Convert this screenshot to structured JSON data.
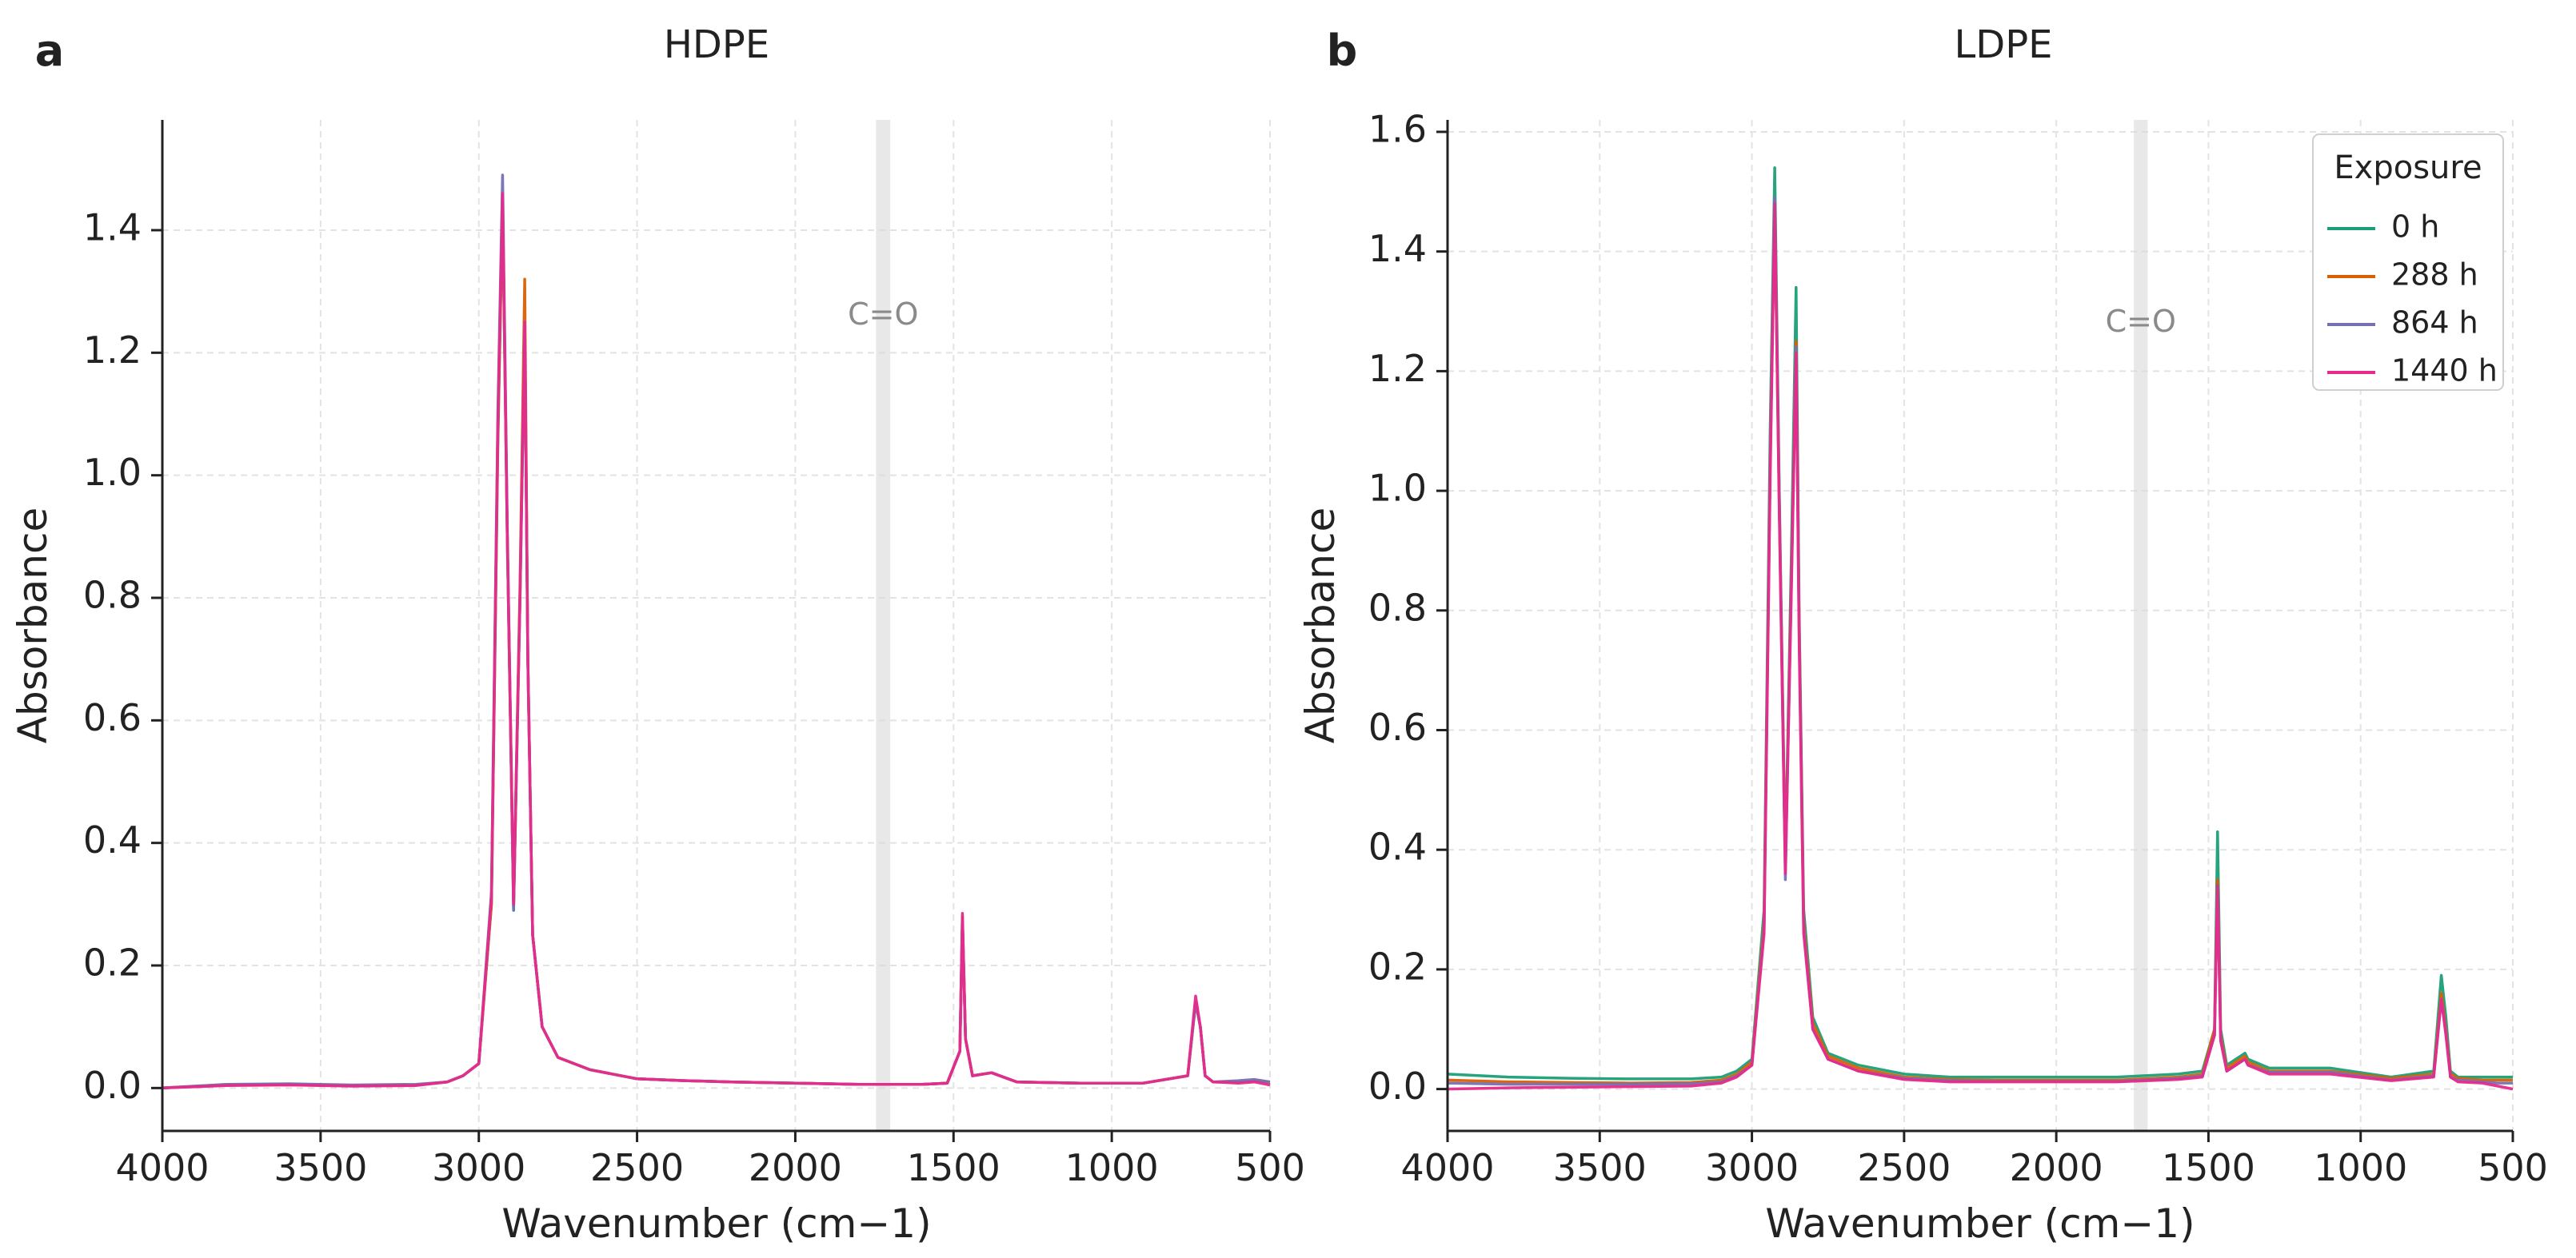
{
  "chart_data": [
    {
      "panel": "a",
      "type": "line",
      "title": "HDPE",
      "xlabel": "Wavenumber (cm−1)",
      "ylabel": "Absorbance",
      "xlim": [
        4000,
        500
      ],
      "ylim": [
        -0.07,
        1.58
      ],
      "xticks": [
        4000,
        3500,
        3000,
        2500,
        2000,
        1500,
        1000,
        500
      ],
      "yticks": [
        0.0,
        0.2,
        0.4,
        0.6,
        0.8,
        1.0,
        1.2,
        1.4
      ],
      "ytick_labels": [
        "0.0",
        "0.2",
        "0.4",
        "0.6",
        "0.8",
        "1.0",
        "1.2",
        "1.4"
      ],
      "grid": true,
      "legend": null,
      "annotation": {
        "text": "C=O",
        "band_x": [
          1745,
          1700
        ],
        "y": 1.26
      },
      "series": [
        {
          "name": "0 h",
          "color": "#1b9e77",
          "x": [
            4000,
            3800,
            3600,
            3400,
            3200,
            3100,
            3050,
            3000,
            2960,
            2940,
            2925,
            2910,
            2890,
            2870,
            2855,
            2845,
            2830,
            2800,
            2750,
            2650,
            2500,
            2350,
            2200,
            2000,
            1800,
            1600,
            1520,
            1480,
            1472,
            1462,
            1440,
            1380,
            1300,
            1100,
            900,
            760,
            735,
            720,
            705,
            680,
            600,
            550,
            500
          ],
          "y": [
            0.0,
            0.005,
            0.006,
            0.004,
            0.005,
            0.01,
            0.02,
            0.04,
            0.3,
            1.05,
            1.44,
            0.9,
            0.29,
            0.8,
            1.24,
            0.7,
            0.25,
            0.1,
            0.05,
            0.03,
            0.015,
            0.012,
            0.01,
            0.008,
            0.006,
            0.006,
            0.008,
            0.06,
            0.28,
            0.08,
            0.02,
            0.025,
            0.01,
            0.008,
            0.008,
            0.02,
            0.14,
            0.1,
            0.02,
            0.01,
            0.01,
            0.012,
            0.01
          ]
        },
        {
          "name": "288 h",
          "color": "#d95f02",
          "x": [
            4000,
            3800,
            3600,
            3400,
            3200,
            3100,
            3050,
            3000,
            2960,
            2940,
            2925,
            2910,
            2890,
            2870,
            2855,
            2845,
            2830,
            2800,
            2750,
            2650,
            2500,
            2350,
            2200,
            2000,
            1800,
            1600,
            1520,
            1480,
            1472,
            1462,
            1440,
            1380,
            1300,
            1100,
            900,
            760,
            735,
            720,
            705,
            680,
            600,
            550,
            500
          ],
          "y": [
            0.0,
            0.005,
            0.006,
            0.004,
            0.005,
            0.01,
            0.02,
            0.04,
            0.3,
            1.06,
            1.45,
            0.9,
            0.3,
            0.82,
            1.32,
            0.7,
            0.25,
            0.1,
            0.05,
            0.03,
            0.015,
            0.012,
            0.01,
            0.008,
            0.006,
            0.006,
            0.008,
            0.06,
            0.27,
            0.08,
            0.02,
            0.025,
            0.01,
            0.008,
            0.008,
            0.02,
            0.14,
            0.1,
            0.02,
            0.01,
            0.01,
            0.012,
            0.01
          ]
        },
        {
          "name": "864 h",
          "color": "#7570b3",
          "x": [
            4000,
            3800,
            3600,
            3400,
            3200,
            3100,
            3050,
            3000,
            2960,
            2940,
            2925,
            2910,
            2890,
            2870,
            2855,
            2845,
            2830,
            2800,
            2750,
            2650,
            2500,
            2350,
            2200,
            2000,
            1800,
            1600,
            1520,
            1480,
            1472,
            1462,
            1440,
            1380,
            1300,
            1100,
            900,
            760,
            735,
            720,
            705,
            680,
            600,
            550,
            500
          ],
          "y": [
            0.0,
            0.006,
            0.007,
            0.005,
            0.006,
            0.01,
            0.02,
            0.04,
            0.32,
            1.1,
            1.49,
            0.92,
            0.29,
            0.8,
            1.25,
            0.7,
            0.25,
            0.1,
            0.05,
            0.03,
            0.015,
            0.012,
            0.01,
            0.008,
            0.006,
            0.006,
            0.008,
            0.06,
            0.27,
            0.08,
            0.02,
            0.025,
            0.01,
            0.008,
            0.008,
            0.02,
            0.14,
            0.1,
            0.02,
            0.01,
            0.012,
            0.014,
            0.01
          ]
        },
        {
          "name": "1440 h",
          "color": "#e7298a",
          "x": [
            4000,
            3800,
            3600,
            3400,
            3200,
            3100,
            3050,
            3000,
            2960,
            2940,
            2925,
            2910,
            2890,
            2870,
            2855,
            2845,
            2830,
            2800,
            2750,
            2650,
            2500,
            2350,
            2200,
            2000,
            1800,
            1600,
            1520,
            1480,
            1472,
            1462,
            1440,
            1380,
            1300,
            1100,
            900,
            760,
            735,
            720,
            705,
            680,
            600,
            550,
            500
          ],
          "y": [
            0.0,
            0.004,
            0.005,
            0.003,
            0.004,
            0.01,
            0.02,
            0.04,
            0.31,
            1.08,
            1.46,
            0.9,
            0.3,
            0.8,
            1.25,
            0.7,
            0.25,
            0.1,
            0.05,
            0.03,
            0.015,
            0.012,
            0.01,
            0.008,
            0.006,
            0.006,
            0.008,
            0.06,
            0.285,
            0.08,
            0.02,
            0.025,
            0.01,
            0.008,
            0.008,
            0.02,
            0.15,
            0.1,
            0.02,
            0.01,
            0.008,
            0.01,
            0.005
          ]
        }
      ]
    },
    {
      "panel": "b",
      "type": "line",
      "title": "LDPE",
      "xlabel": "Wavenumber (cm−1)",
      "ylabel": "Absorbance",
      "xlim": [
        4000,
        500
      ],
      "ylim": [
        -0.07,
        1.62
      ],
      "xticks": [
        4000,
        3500,
        3000,
        2500,
        2000,
        1500,
        1000,
        500
      ],
      "yticks": [
        0.0,
        0.2,
        0.4,
        0.6,
        0.8,
        1.0,
        1.2,
        1.4,
        1.6
      ],
      "ytick_labels": [
        "0.0",
        "0.2",
        "0.4",
        "0.6",
        "0.8",
        "1.0",
        "1.2",
        "1.4",
        "1.6"
      ],
      "grid": true,
      "legend": {
        "title": "Exposure",
        "position": "top-right"
      },
      "annotation": {
        "text": "C=O",
        "band_x": [
          1745,
          1700
        ],
        "y": 1.28
      },
      "series": [
        {
          "name": "0 h",
          "color": "#1b9e77",
          "x": [
            4000,
            3800,
            3600,
            3400,
            3200,
            3100,
            3050,
            3000,
            2960,
            2940,
            2925,
            2910,
            2890,
            2870,
            2855,
            2845,
            2830,
            2800,
            2750,
            2650,
            2500,
            2350,
            2200,
            2000,
            1800,
            1600,
            1520,
            1480,
            1470,
            1460,
            1440,
            1380,
            1370,
            1300,
            1100,
            900,
            760,
            735,
            720,
            705,
            680,
            600,
            550,
            500
          ],
          "y": [
            0.025,
            0.02,
            0.018,
            0.017,
            0.017,
            0.02,
            0.03,
            0.05,
            0.3,
            1.1,
            1.54,
            1.0,
            0.38,
            0.9,
            1.34,
            0.8,
            0.3,
            0.12,
            0.06,
            0.04,
            0.025,
            0.02,
            0.02,
            0.02,
            0.02,
            0.025,
            0.03,
            0.1,
            0.43,
            0.1,
            0.04,
            0.06,
            0.05,
            0.035,
            0.035,
            0.02,
            0.03,
            0.19,
            0.12,
            0.03,
            0.02,
            0.02,
            0.02,
            0.02
          ]
        },
        {
          "name": "288 h",
          "color": "#d95f02",
          "x": [
            4000,
            3800,
            3600,
            3400,
            3200,
            3100,
            3050,
            3000,
            2960,
            2940,
            2925,
            2910,
            2890,
            2870,
            2855,
            2845,
            2830,
            2800,
            2750,
            2650,
            2500,
            2350,
            2200,
            2000,
            1800,
            1600,
            1520,
            1480,
            1470,
            1460,
            1440,
            1380,
            1370,
            1300,
            1100,
            900,
            760,
            735,
            720,
            705,
            680,
            600,
            550,
            500
          ],
          "y": [
            0.015,
            0.012,
            0.011,
            0.01,
            0.011,
            0.015,
            0.025,
            0.045,
            0.28,
            1.05,
            1.47,
            0.98,
            0.37,
            0.86,
            1.25,
            0.78,
            0.28,
            0.11,
            0.055,
            0.035,
            0.02,
            0.016,
            0.015,
            0.015,
            0.015,
            0.02,
            0.025,
            0.1,
            0.35,
            0.09,
            0.035,
            0.055,
            0.045,
            0.03,
            0.03,
            0.018,
            0.025,
            0.16,
            0.1,
            0.025,
            0.018,
            0.015,
            0.015,
            0.015
          ]
        },
        {
          "name": "864 h",
          "color": "#7570b3",
          "x": [
            4000,
            3800,
            3600,
            3400,
            3200,
            3100,
            3050,
            3000,
            2960,
            2940,
            2925,
            2910,
            2890,
            2870,
            2855,
            2845,
            2830,
            2800,
            2750,
            2650,
            2500,
            2350,
            2200,
            2000,
            1800,
            1600,
            1520,
            1480,
            1470,
            1460,
            1440,
            1380,
            1370,
            1300,
            1100,
            900,
            760,
            735,
            720,
            705,
            680,
            600,
            550,
            500
          ],
          "y": [
            0.01,
            0.008,
            0.008,
            0.008,
            0.009,
            0.012,
            0.022,
            0.04,
            0.27,
            1.04,
            1.49,
            0.98,
            0.35,
            0.85,
            1.24,
            0.77,
            0.27,
            0.1,
            0.05,
            0.03,
            0.018,
            0.014,
            0.013,
            0.013,
            0.013,
            0.018,
            0.022,
            0.09,
            0.34,
            0.085,
            0.03,
            0.05,
            0.04,
            0.028,
            0.028,
            0.015,
            0.022,
            0.15,
            0.095,
            0.02,
            0.015,
            0.012,
            0.01,
            0.01
          ]
        },
        {
          "name": "1440 h",
          "color": "#e7298a",
          "x": [
            4000,
            3800,
            3600,
            3400,
            3200,
            3100,
            3050,
            3000,
            2960,
            2940,
            2925,
            2910,
            2890,
            2870,
            2855,
            2845,
            2830,
            2800,
            2750,
            2650,
            2500,
            2350,
            2200,
            2000,
            1800,
            1600,
            1520,
            1480,
            1470,
            1460,
            1440,
            1380,
            1370,
            1300,
            1100,
            900,
            760,
            735,
            720,
            705,
            680,
            600,
            550,
            500
          ],
          "y": [
            0.0,
            0.002,
            0.003,
            0.004,
            0.005,
            0.01,
            0.02,
            0.04,
            0.26,
            1.02,
            1.48,
            0.96,
            0.36,
            0.84,
            1.23,
            0.75,
            0.26,
            0.1,
            0.05,
            0.03,
            0.016,
            0.012,
            0.012,
            0.012,
            0.012,
            0.016,
            0.02,
            0.09,
            0.34,
            0.08,
            0.03,
            0.05,
            0.04,
            0.025,
            0.025,
            0.014,
            0.02,
            0.15,
            0.09,
            0.02,
            0.012,
            0.01,
            0.005,
            0.0
          ]
        }
      ]
    }
  ]
}
